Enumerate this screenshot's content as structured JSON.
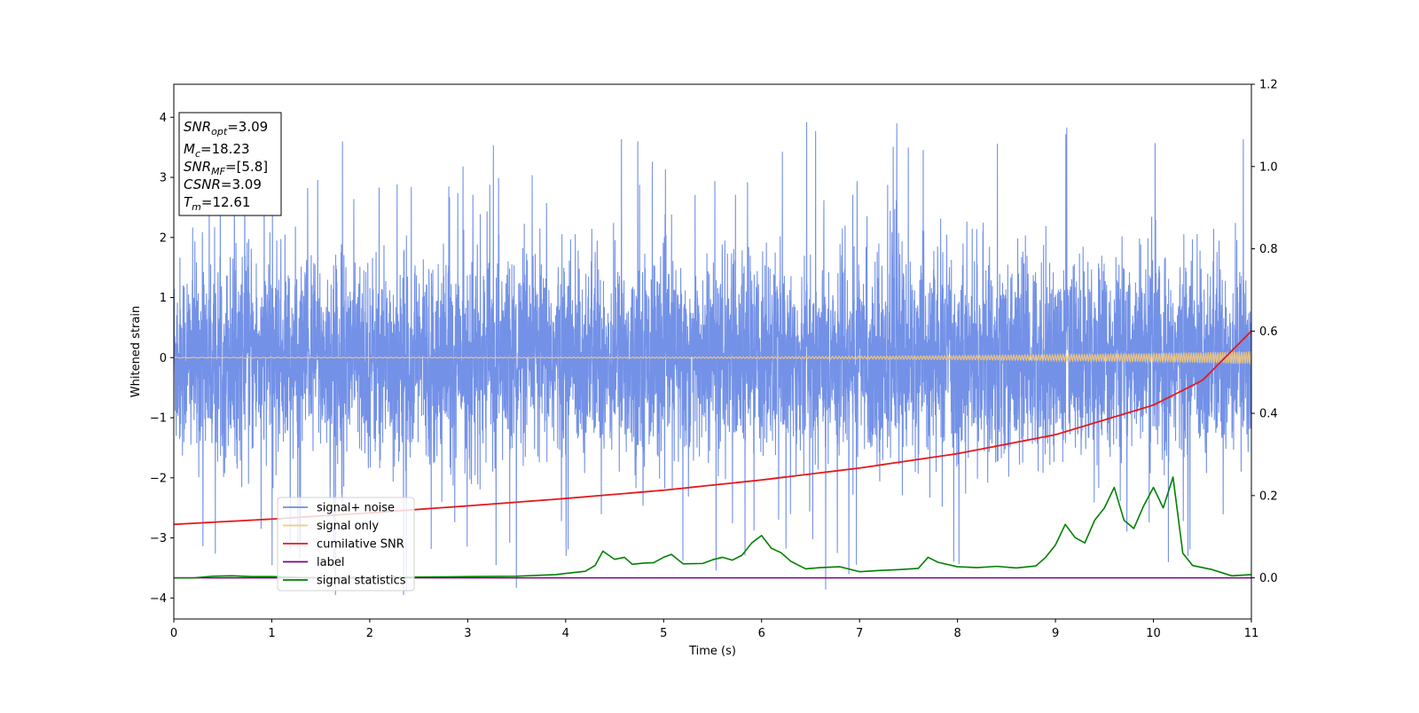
{
  "chart_data": {
    "type": "line",
    "xlabel": "Time (s)",
    "ylabel": "Whitened strain",
    "xlim": [
      0,
      11
    ],
    "ylim_left": [
      -4.35,
      4.55
    ],
    "ylim_right": [
      -0.1,
      1.2
    ],
    "x_ticks": [
      0,
      1,
      2,
      3,
      4,
      5,
      6,
      7,
      8,
      9,
      10,
      11
    ],
    "y_ticks_left": [
      -4,
      -3,
      -2,
      -1,
      0,
      1,
      2,
      3,
      4
    ],
    "y_ticks_right": [
      0.0,
      0.2,
      0.4,
      0.6,
      0.8,
      1.0,
      1.2
    ],
    "y_tick_labels_left": [
      "−4",
      "−3",
      "−2",
      "−1",
      "0",
      "1",
      "2",
      "3",
      "4"
    ],
    "y_tick_labels_right": [
      "0.0",
      "0.2",
      "0.4",
      "0.6",
      "0.8",
      "1.0",
      "1.2"
    ],
    "grid": false,
    "legend_placement": "lower-left",
    "series": [
      {
        "name": "signal+ noise",
        "axis": "left",
        "color": "#6c8be6",
        "description_of_values": "dense whitened noise, roughly within ±2.5 with spikes to about ±4"
      },
      {
        "name": "signal only",
        "axis": "left",
        "color": "#f5c97a"
      },
      {
        "name": "cumilative SNR",
        "axis": "right",
        "color": "#e31a1c",
        "x": [
          0,
          1,
          2,
          3,
          4,
          5,
          6,
          7,
          8,
          9,
          10,
          10.5,
          11
        ],
        "values": [
          0.13,
          0.143,
          0.158,
          0.175,
          0.193,
          0.213,
          0.238,
          0.267,
          0.302,
          0.348,
          0.42,
          0.48,
          0.6
        ]
      },
      {
        "name": "label",
        "axis": "right",
        "color": "#800080",
        "x": [
          0,
          11
        ],
        "values": [
          0.0,
          0.0
        ]
      },
      {
        "name": "signal statistics",
        "axis": "right",
        "color": "#008000",
        "x": [
          0,
          0.2,
          0.4,
          0.6,
          0.8,
          1.0,
          1.3,
          1.6,
          2.0,
          2.5,
          3.0,
          3.5,
          3.9,
          4.2,
          4.3,
          4.38,
          4.5,
          4.6,
          4.68,
          4.8,
          4.9,
          5.0,
          5.08,
          5.2,
          5.4,
          5.5,
          5.6,
          5.7,
          5.8,
          5.9,
          6.0,
          6.1,
          6.2,
          6.3,
          6.45,
          6.6,
          6.8,
          7.0,
          7.2,
          7.4,
          7.6,
          7.7,
          7.8,
          8.0,
          8.2,
          8.4,
          8.6,
          8.8,
          8.9,
          9.0,
          9.1,
          9.2,
          9.3,
          9.4,
          9.5,
          9.6,
          9.7,
          9.8,
          9.9,
          10.0,
          10.1,
          10.2,
          10.3,
          10.4,
          10.6,
          10.8,
          11.0
        ],
        "values": [
          0.0,
          0.0,
          0.004,
          0.005,
          0.003,
          0.003,
          0.001,
          0.0,
          0.002,
          0.002,
          0.003,
          0.004,
          0.008,
          0.016,
          0.03,
          0.065,
          0.045,
          0.05,
          0.033,
          0.036,
          0.037,
          0.05,
          0.057,
          0.034,
          0.035,
          0.044,
          0.05,
          0.043,
          0.055,
          0.085,
          0.103,
          0.072,
          0.061,
          0.04,
          0.022,
          0.025,
          0.027,
          0.015,
          0.018,
          0.02,
          0.023,
          0.05,
          0.038,
          0.027,
          0.025,
          0.028,
          0.024,
          0.029,
          0.05,
          0.08,
          0.13,
          0.098,
          0.085,
          0.14,
          0.17,
          0.22,
          0.14,
          0.12,
          0.175,
          0.22,
          0.17,
          0.245,
          0.06,
          0.03,
          0.02,
          0.005,
          0.008
        ]
      }
    ],
    "annotations": [
      {
        "base": "SNR",
        "sub": "opt",
        "value": "=3.09"
      },
      {
        "base": "M",
        "sub": "c",
        "value": "=18.23"
      },
      {
        "base": "SNR",
        "sub": "MF",
        "value": "=[5.8]"
      },
      {
        "base": "CSNR",
        "sub": "",
        "value": "=3.09"
      },
      {
        "base": "T",
        "sub": "m",
        "value": "=12.61"
      }
    ]
  }
}
